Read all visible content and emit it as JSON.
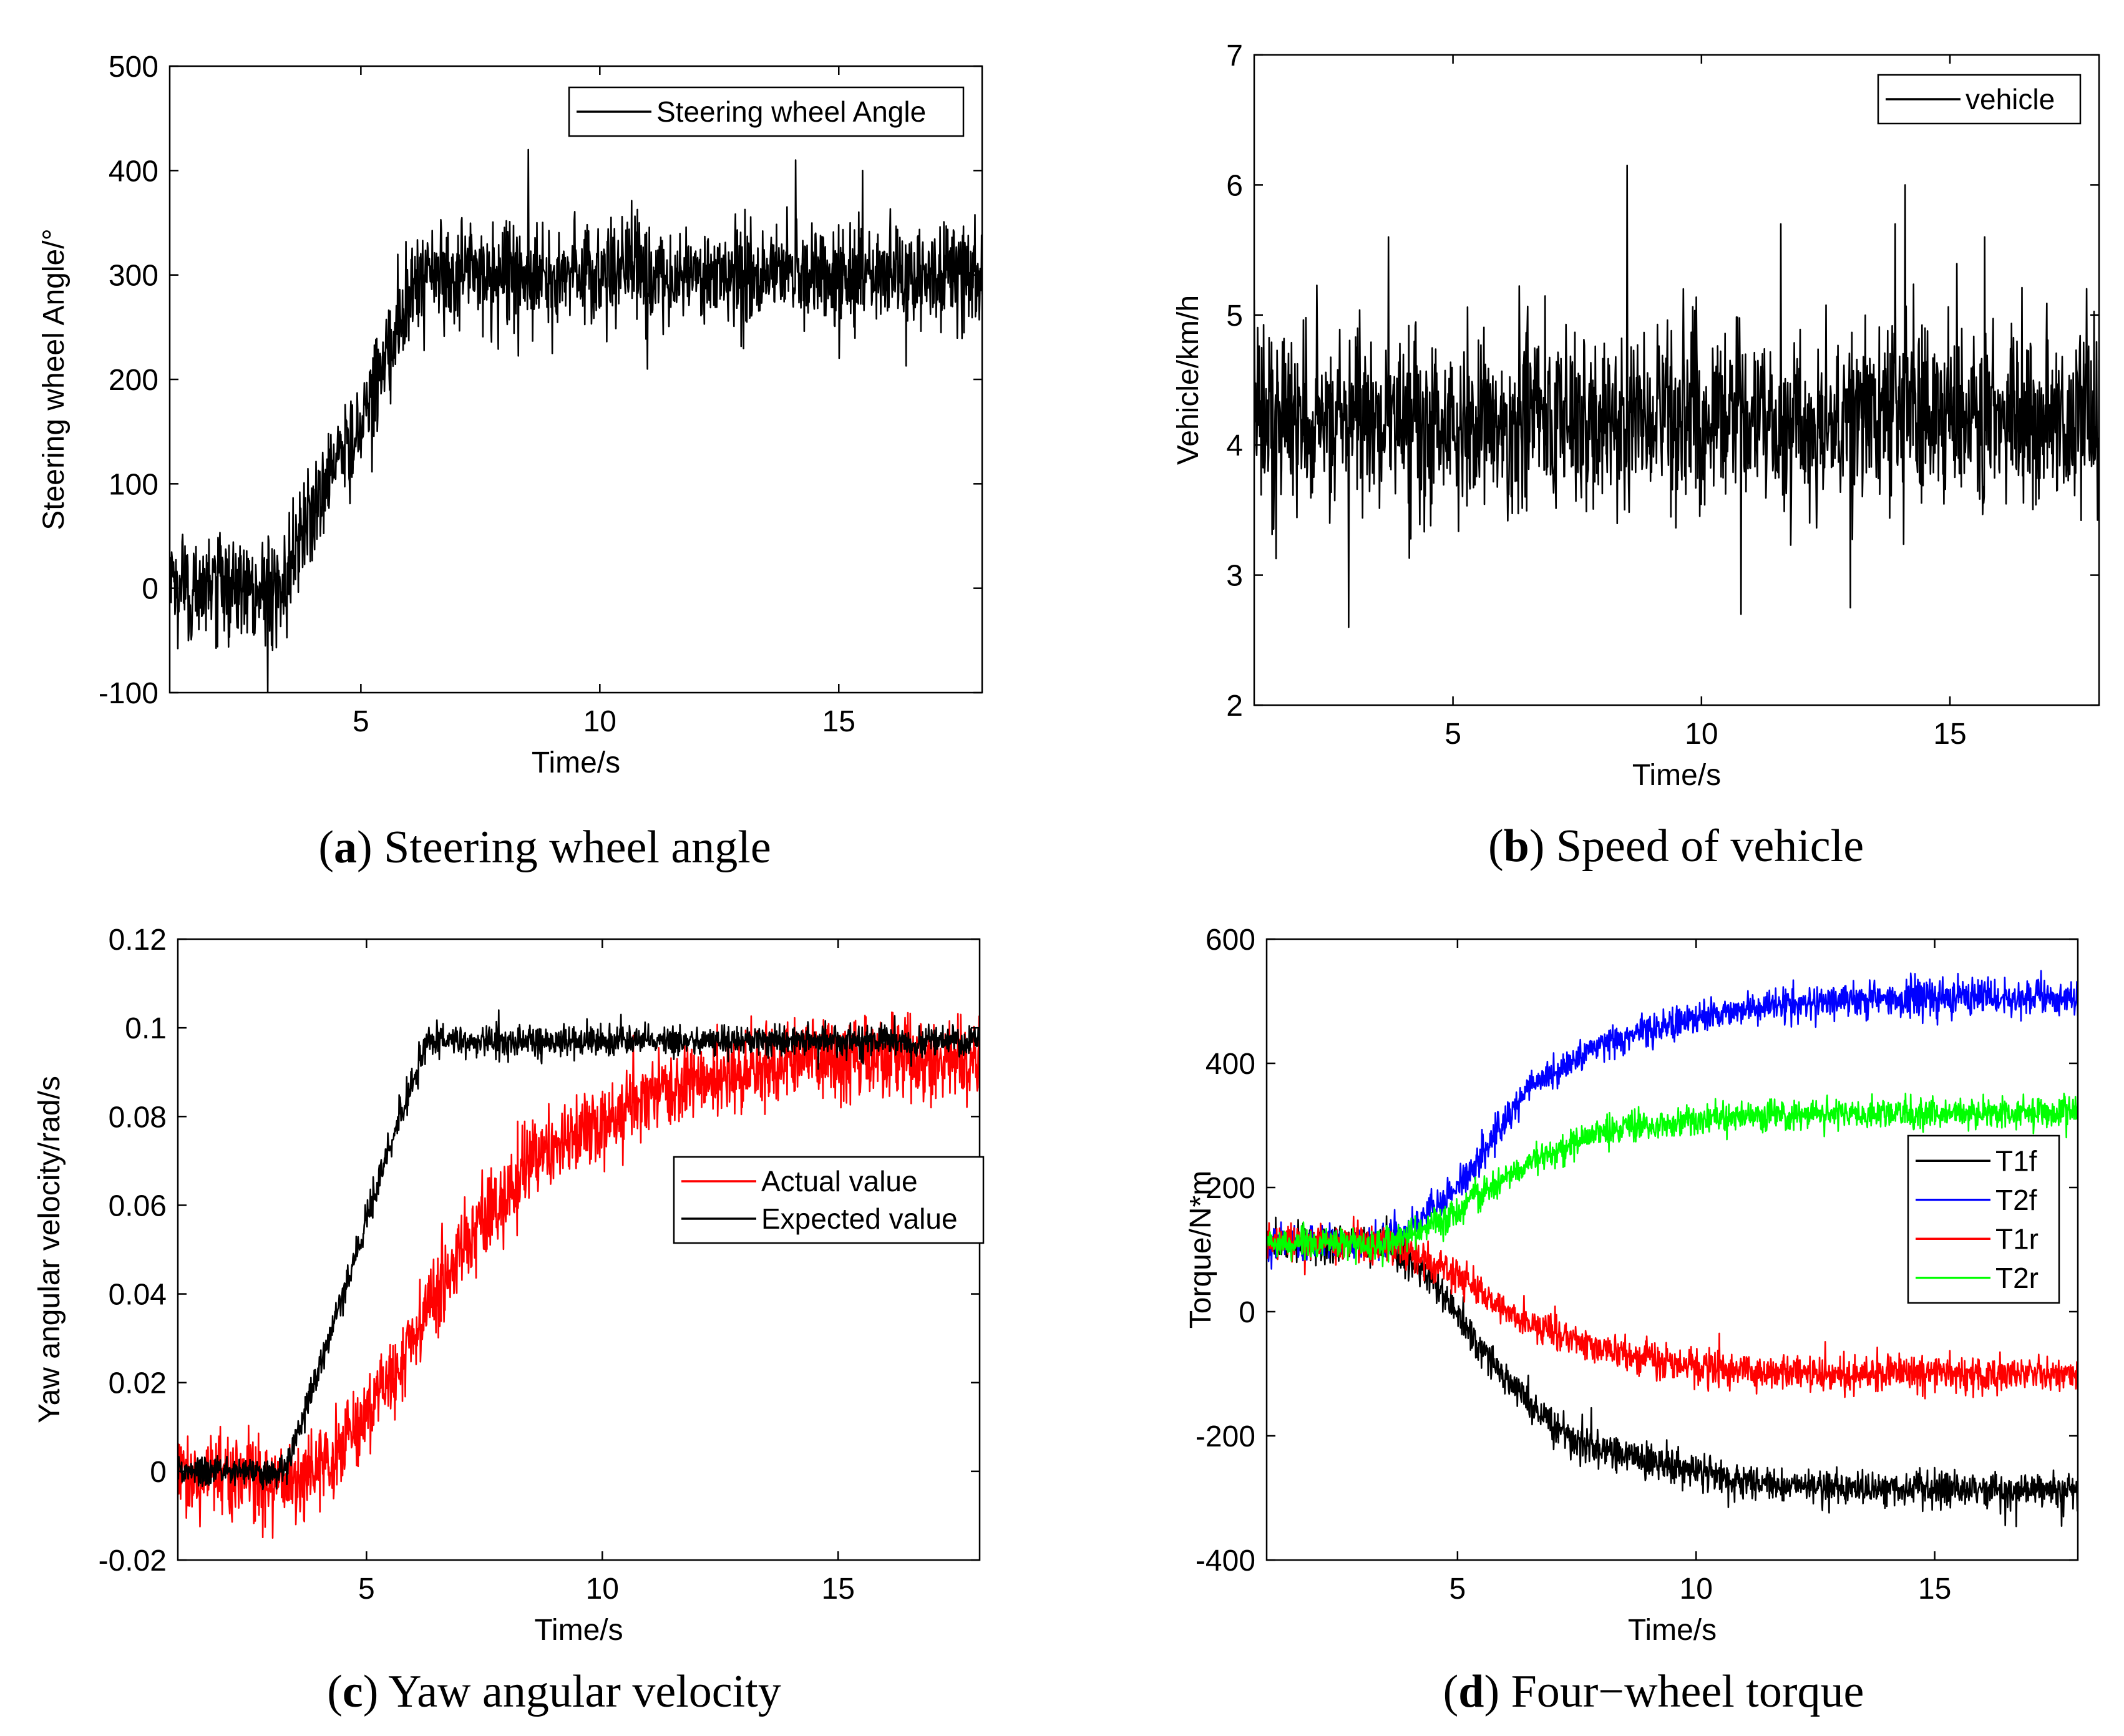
{
  "chart_data": [
    {
      "id": "a",
      "type": "line",
      "caption_letter": "a",
      "caption_text": "Steering wheel angle",
      "xlabel": "Time/s",
      "ylabel": "Steering wheel Angle/°",
      "xlim": [
        1,
        18
      ],
      "ylim": [
        -100,
        500
      ],
      "xticks": [
        5,
        10,
        15
      ],
      "xtick_labels": [
        "5",
        "10",
        "15"
      ],
      "yticks": [
        -100,
        0,
        100,
        200,
        300,
        400,
        500
      ],
      "ytick_labels": [
        "-100",
        "0",
        "100",
        "200",
        "300",
        "400",
        "500"
      ],
      "grid": false,
      "legend_position": "top-right",
      "series": [
        {
          "name": "Steering wheel Angle",
          "color": "#000000",
          "profile": [
            [
              1,
              0
            ],
            [
              3.3,
              0
            ],
            [
              4,
              80
            ],
            [
              5,
              160
            ],
            [
              6,
              280
            ],
            [
              6.5,
              300
            ],
            [
              18,
              300
            ]
          ],
          "noise": 25,
          "spikes": [
            [
              3.05,
              -100
            ],
            [
              8.5,
              420
            ],
            [
              14.1,
              410
            ],
            [
              15.5,
              400
            ],
            [
              11,
              210
            ],
            [
              9,
              225
            ]
          ]
        }
      ]
    },
    {
      "id": "b",
      "type": "line",
      "caption_letter": "b",
      "caption_text": "Speed of vehicle",
      "xlabel": "Time/s",
      "ylabel": "Vehicle/km/h",
      "xlim": [
        1,
        18
      ],
      "ylim": [
        2,
        7
      ],
      "xticks": [
        5,
        10,
        15
      ],
      "xtick_labels": [
        "5",
        "10",
        "15"
      ],
      "yticks": [
        2,
        3,
        4,
        5,
        6,
        7
      ],
      "ytick_labels": [
        "2",
        "3",
        "4",
        "5",
        "6",
        "7"
      ],
      "grid": false,
      "legend_position": "top-right",
      "series": [
        {
          "name": "vehicle",
          "color": "#000000",
          "profile": [
            [
              1,
              4.2
            ],
            [
              18,
              4.2
            ]
          ],
          "noise": 0.35,
          "spikes": [
            [
              8.5,
              6.15
            ],
            [
              14.1,
              6.0
            ],
            [
              2.9,
              2.6
            ],
            [
              10.8,
              2.7
            ],
            [
              3.7,
              5.6
            ],
            [
              11.6,
              5.7
            ],
            [
              13.9,
              5.7
            ],
            [
              15.7,
              5.6
            ],
            [
              13,
              2.75
            ]
          ]
        }
      ]
    },
    {
      "id": "c",
      "type": "line",
      "caption_letter": "c",
      "caption_text": "Yaw angular velocity",
      "xlabel": "Time/s",
      "ylabel": "Yaw angular velocity/rad/s",
      "xlim": [
        1,
        18
      ],
      "ylim": [
        -0.02,
        0.12
      ],
      "xticks": [
        5,
        10,
        15
      ],
      "xtick_labels": [
        "5",
        "10",
        "15"
      ],
      "yticks": [
        -0.02,
        0,
        0.02,
        0.04,
        0.06,
        0.08,
        0.1,
        0.12
      ],
      "ytick_labels": [
        "-0.02",
        "0",
        "0.02",
        "0.04",
        "0.06",
        "0.08",
        "0.1",
        "0.12"
      ],
      "grid": false,
      "legend_position": "middle-right",
      "series": [
        {
          "name": "Actual value",
          "color": "#ff0000",
          "profile": [
            [
              1,
              0.0
            ],
            [
              3.6,
              -0.003
            ],
            [
              4.5,
              0.005
            ],
            [
              5.5,
              0.02
            ],
            [
              7,
              0.05
            ],
            [
              8.5,
              0.07
            ],
            [
              10,
              0.08
            ],
            [
              12,
              0.088
            ],
            [
              14,
              0.092
            ],
            [
              18,
              0.093
            ]
          ],
          "noise": 0.0045,
          "spikes": [
            [
              8.3,
              0.078
            ],
            [
              17.6,
              0.103
            ],
            [
              3.5,
              -0.012
            ]
          ]
        },
        {
          "name": "Expected value",
          "color": "#000000",
          "profile": [
            [
              1,
              0.0
            ],
            [
              3.3,
              0.0
            ],
            [
              4.5,
              0.04
            ],
            [
              5.7,
              0.08
            ],
            [
              6.3,
              0.097
            ],
            [
              18,
              0.097
            ]
          ],
          "noise": 0.0018,
          "spikes": [
            [
              7.8,
              0.104
            ],
            [
              10.4,
              0.103
            ]
          ]
        }
      ]
    },
    {
      "id": "d",
      "type": "line",
      "caption_letter": "d",
      "caption_text": "Four−wheel torque",
      "xlabel": "Time/s",
      "ylabel": "Torque/N*m",
      "xlim": [
        1,
        18
      ],
      "ylim": [
        -400,
        600
      ],
      "xticks": [
        5,
        10,
        15
      ],
      "xtick_labels": [
        "5",
        "10",
        "15"
      ],
      "yticks": [
        -400,
        -200,
        0,
        200,
        400,
        600
      ],
      "ytick_labels": [
        "-400",
        "-200",
        "0",
        "200",
        "400",
        "600"
      ],
      "grid": false,
      "legend_position": "middle-right",
      "series": [
        {
          "name": "T1f",
          "color": "#000000",
          "profile": [
            [
              1,
              110
            ],
            [
              3.5,
              110
            ],
            [
              4.5,
              50
            ],
            [
              5.5,
              -60
            ],
            [
              6.5,
              -150
            ],
            [
              7.5,
              -210
            ],
            [
              9,
              -240
            ],
            [
              10.5,
              -265
            ],
            [
              12,
              -280
            ],
            [
              14,
              -285
            ],
            [
              18,
              -290
            ]
          ],
          "noise": 14,
          "spikes": [
            [
              7.8,
              -155
            ],
            [
              17.7,
              -330
            ]
          ]
        },
        {
          "name": "T2f",
          "color": "#0000ff",
          "profile": [
            [
              1,
              110
            ],
            [
              3.5,
              110
            ],
            [
              4.5,
              160
            ],
            [
              5.5,
              250
            ],
            [
              6.5,
              360
            ],
            [
              8,
              430
            ],
            [
              9.5,
              465
            ],
            [
              11,
              490
            ],
            [
              13,
              500
            ],
            [
              15,
              505
            ],
            [
              18,
              505
            ]
          ],
          "noise": 14,
          "spikes": [
            [
              14.5,
              545
            ]
          ]
        },
        {
          "name": "T1r",
          "color": "#ff0000",
          "profile": [
            [
              1,
              110
            ],
            [
              3.5,
              110
            ],
            [
              4.5,
              80
            ],
            [
              5.5,
              30
            ],
            [
              6.5,
              -20
            ],
            [
              8,
              -60
            ],
            [
              9.5,
              -85
            ],
            [
              11,
              -95
            ],
            [
              13,
              -100
            ],
            [
              18,
              -100
            ]
          ],
          "noise": 14,
          "spikes": [
            [
              1.8,
              60
            ],
            [
              14.8,
              -140
            ]
          ]
        },
        {
          "name": "T2r",
          "color": "#00ff00",
          "profile": [
            [
              1,
              110
            ],
            [
              3.5,
              110
            ],
            [
              4.5,
              140
            ],
            [
              5.5,
              190
            ],
            [
              6.5,
              240
            ],
            [
              8,
              290
            ],
            [
              9.5,
              305
            ],
            [
              11,
              315
            ],
            [
              13,
              320
            ],
            [
              18,
              322
            ]
          ],
          "noise": 12,
          "spikes": [
            [
              14.5,
              350
            ]
          ]
        }
      ]
    }
  ]
}
